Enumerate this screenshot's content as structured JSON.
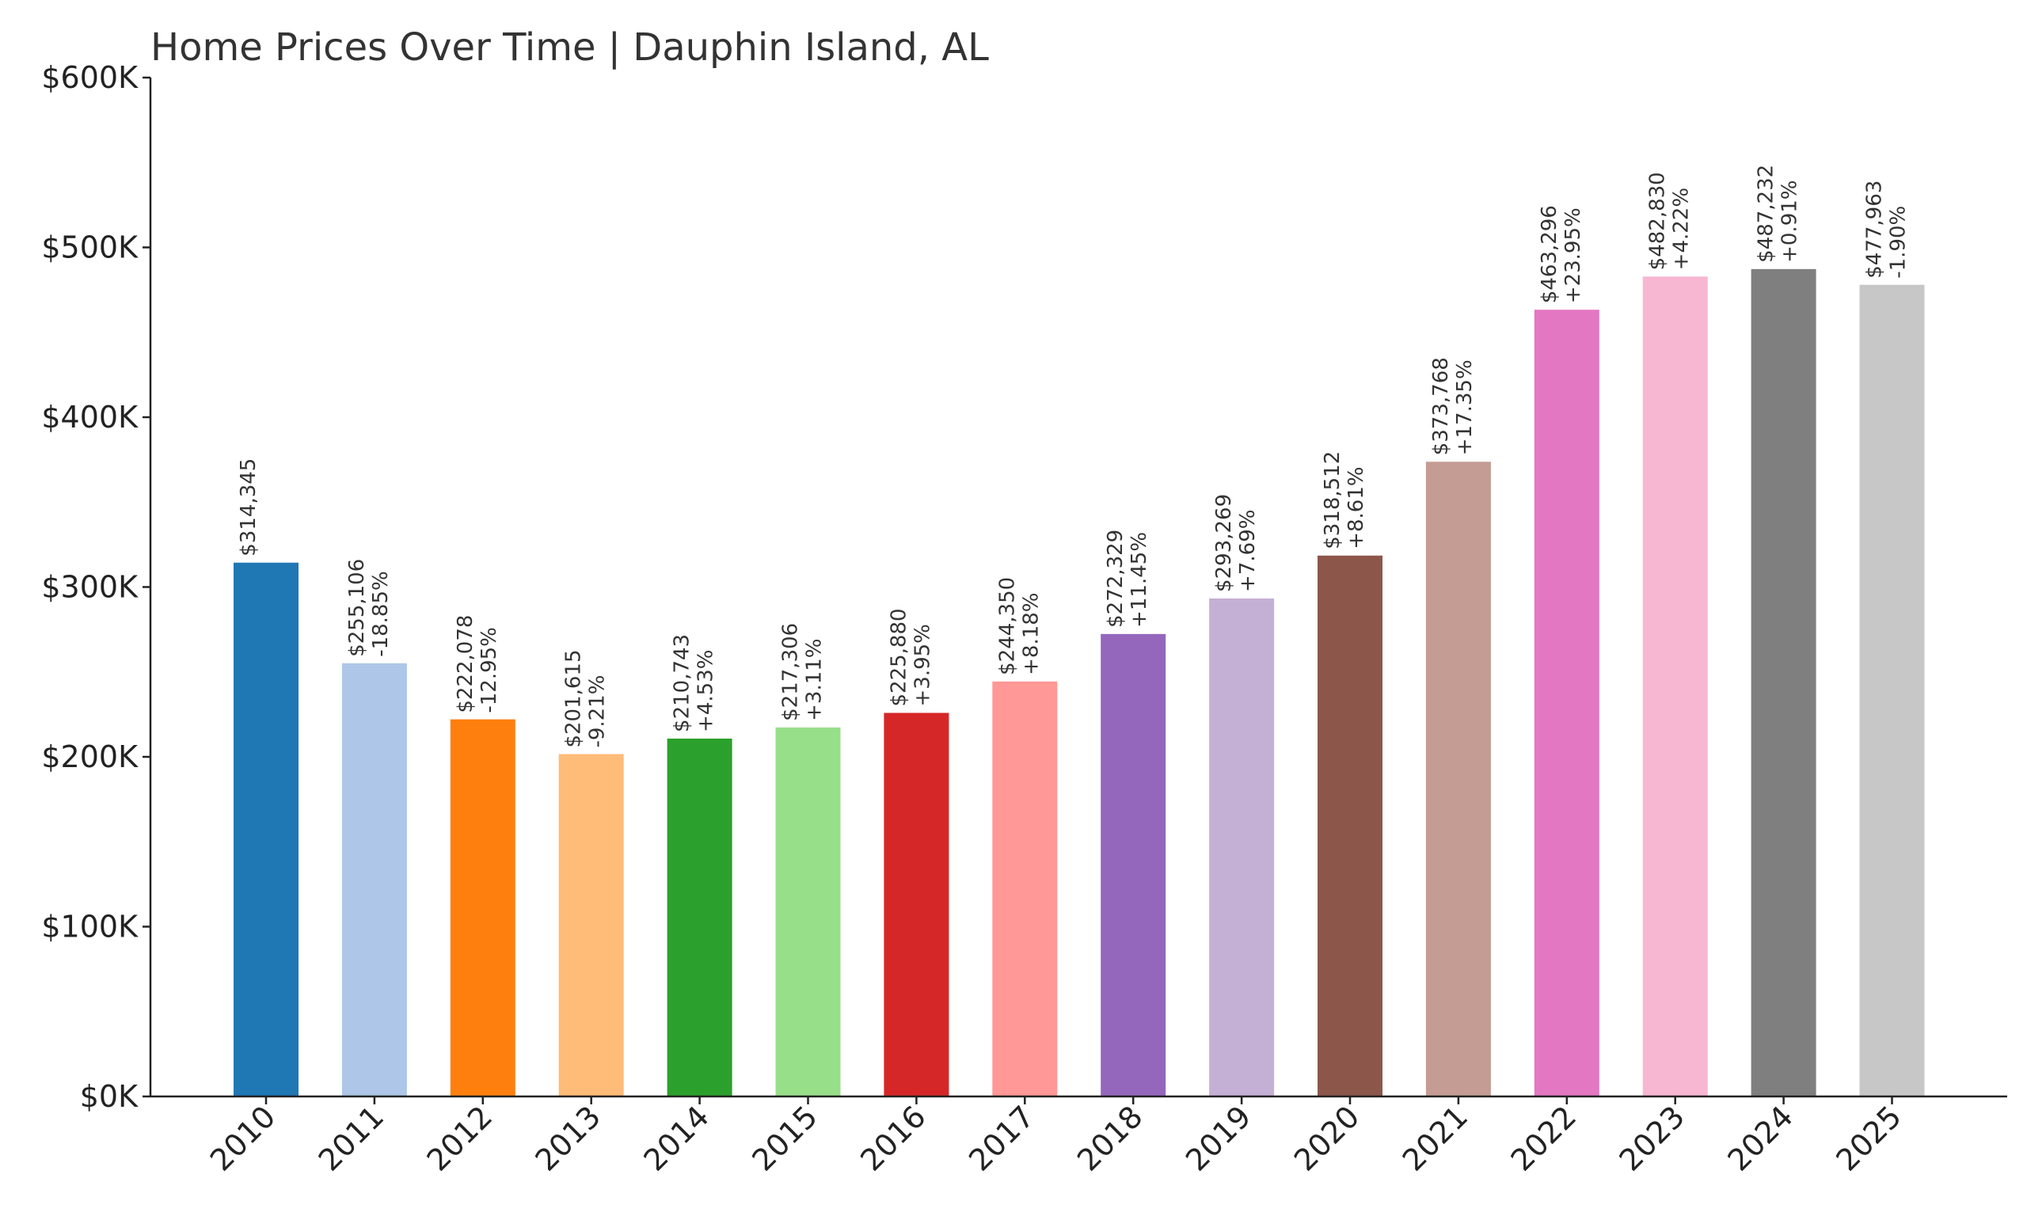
{
  "chart_data": {
    "type": "bar",
    "title": "Home Prices Over Time | Dauphin Island, AL",
    "xlabel": "",
    "ylabel": "",
    "ylim": [
      0,
      600000
    ],
    "yticks": [
      {
        "value": 0,
        "label": "$0K"
      },
      {
        "value": 100000,
        "label": "$100K"
      },
      {
        "value": 200000,
        "label": "$200K"
      },
      {
        "value": 300000,
        "label": "$300K"
      },
      {
        "value": 400000,
        "label": "$400K"
      },
      {
        "value": 500000,
        "label": "$500K"
      },
      {
        "value": 600000,
        "label": "$600K"
      }
    ],
    "grid": false,
    "legend": "none",
    "categories": [
      "2010",
      "2011",
      "2012",
      "2013",
      "2014",
      "2015",
      "2016",
      "2017",
      "2018",
      "2019",
      "2020",
      "2021",
      "2022",
      "2023",
      "2024",
      "2025"
    ],
    "values": [
      314345,
      255106,
      222078,
      201615,
      210743,
      217306,
      225880,
      244350,
      272329,
      293269,
      318512,
      373768,
      463296,
      482830,
      487232,
      477963
    ],
    "value_labels": [
      "$314,345",
      "$255,106",
      "$222,078",
      "$201,615",
      "$210,743",
      "$217,306",
      "$225,880",
      "$244,350",
      "$272,329",
      "$293,269",
      "$318,512",
      "$373,768",
      "$463,296",
      "$482,830",
      "$487,232",
      "$477,963"
    ],
    "change_labels": [
      "",
      "-18.85%",
      "-12.95%",
      "-9.21%",
      "+4.53%",
      "+3.11%",
      "+3.95%",
      "+8.18%",
      "+11.45%",
      "+7.69%",
      "+8.61%",
      "+17.35%",
      "+23.95%",
      "+4.22%",
      "+0.91%",
      "-1.90%"
    ],
    "colors": [
      "#1f77b4",
      "#aec7e8",
      "#ff7f0e",
      "#ffbb78",
      "#2ca02c",
      "#98df8a",
      "#d62728",
      "#ff9896",
      "#9467bd",
      "#c5b0d5",
      "#8c564b",
      "#c49c94",
      "#e377c2",
      "#f7b6d2",
      "#7f7f7f",
      "#c7c7c7"
    ]
  }
}
